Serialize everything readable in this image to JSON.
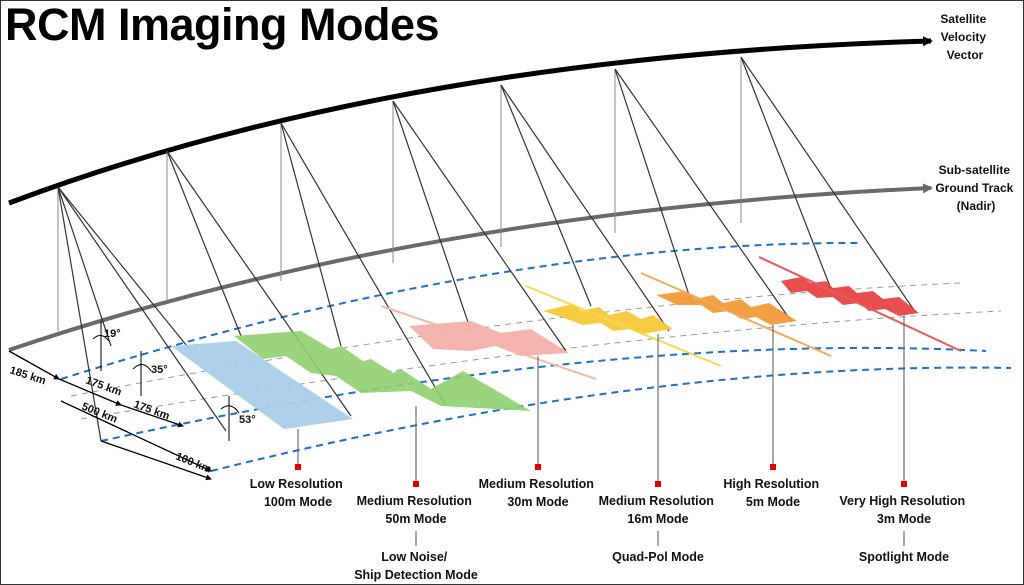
{
  "title": "RCM Imaging Modes",
  "vectors": {
    "velocity": [
      "Satellite",
      "Velocity",
      "Vector"
    ],
    "ground_track": [
      "Sub-satellite",
      "Ground Track",
      "(Nadir)"
    ]
  },
  "distances": {
    "d185": "185 km",
    "d175a": "175 km",
    "d175b": "175 km",
    "d500": "500 km",
    "d100": "100 km"
  },
  "angles": {
    "a19": "19°",
    "a35": "35°",
    "a53": "53°"
  },
  "modes": {
    "low100": [
      "Low Resolution",
      "100m Mode"
    ],
    "med50": [
      "Medium Resolution",
      "50m Mode"
    ],
    "med30": [
      "Medium Resolution",
      "30m Mode"
    ],
    "med16": [
      "Medium Resolution",
      "16m Mode"
    ],
    "high5": [
      "High Resolution",
      "5m Mode"
    ],
    "vhigh3": [
      "Very High Resolution",
      "3m Mode"
    ]
  },
  "sub_modes": {
    "lownoise": [
      "Low Noise/",
      "Ship Detection Mode"
    ],
    "quadpol": [
      "Quad-Pol Mode"
    ],
    "spotlight": [
      "Spotlight Mode"
    ]
  },
  "colors": {
    "low_res": "#a9cfe8",
    "medium_50m": "#8fd06f",
    "medium_30m": "#f5b0aa",
    "medium_16m": "#f7c93a",
    "high_5m": "#f29a3a",
    "very_high_3m": "#e84545",
    "swath_edges": "#1e6fc8",
    "marker": "#e00000"
  }
}
